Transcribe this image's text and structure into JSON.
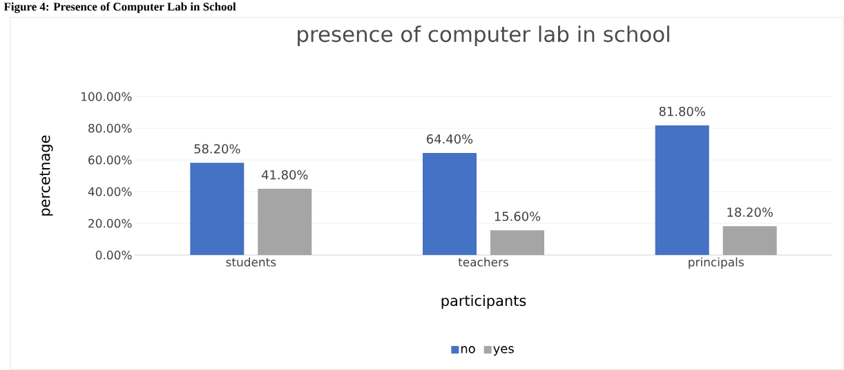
{
  "chart_data": {
    "type": "bar",
    "title": "presence of computer lab in school",
    "xlabel": "participants",
    "ylabel": "percetnage",
    "annotations": [
      "Figure 4: Presence of Computer Lab in School"
    ],
    "categories": [
      "students",
      "teachers",
      "principals"
    ],
    "series": [
      {
        "name": "no",
        "color": "#4472c4",
        "values": [
          58.2,
          64.4,
          81.8
        ],
        "value_labels": [
          "58.20%",
          "64.40%",
          "81.80%"
        ]
      },
      {
        "name": "yes",
        "color": "#a5a5a5",
        "values": [
          41.8,
          15.6,
          18.2
        ],
        "value_labels": [
          "41.80%",
          "15.60%",
          "18.20%"
        ]
      }
    ],
    "ylim": [
      0,
      100
    ],
    "yticks": [
      {
        "value": 0,
        "label": "0.00%"
      },
      {
        "value": 20,
        "label": "20.00%"
      },
      {
        "value": 40,
        "label": "40.00%"
      },
      {
        "value": 60,
        "label": "60.00%"
      },
      {
        "value": 80,
        "label": "80.00%"
      },
      {
        "value": 100,
        "label": "100.00%"
      }
    ],
    "grid": "y",
    "legend": "bottom"
  }
}
